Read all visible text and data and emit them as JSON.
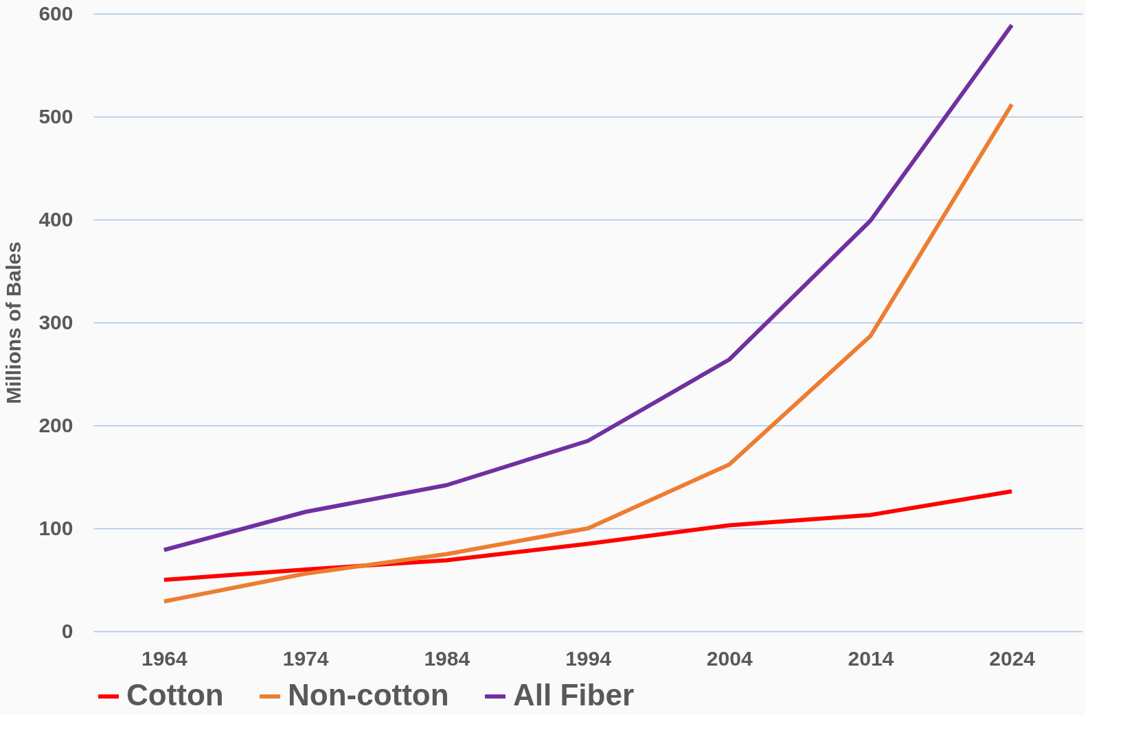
{
  "chart_data": {
    "type": "line",
    "ylabel": "Millions of Bales",
    "categories": [
      "1964",
      "1974",
      "1984",
      "1994",
      "2004",
      "2014",
      "2024"
    ],
    "series": [
      {
        "name": "Cotton",
        "color": "#ff0000",
        "values": [
          50,
          60,
          69,
          85,
          103,
          113,
          136
        ]
      },
      {
        "name": "Non-cotton",
        "color": "#ed7d31",
        "values": [
          29,
          56,
          75,
          100,
          162,
          287,
          512
        ]
      },
      {
        "name": "All Fiber",
        "color": "#7030a0",
        "values": [
          79,
          116,
          142,
          185,
          264,
          399,
          589
        ]
      }
    ],
    "ylim": [
      0,
      600
    ],
    "yticks": [
      0,
      100,
      200,
      300,
      400,
      500,
      600
    ],
    "grid": "y",
    "legend": "bottom",
    "marker": "none",
    "line_style": "solid"
  }
}
